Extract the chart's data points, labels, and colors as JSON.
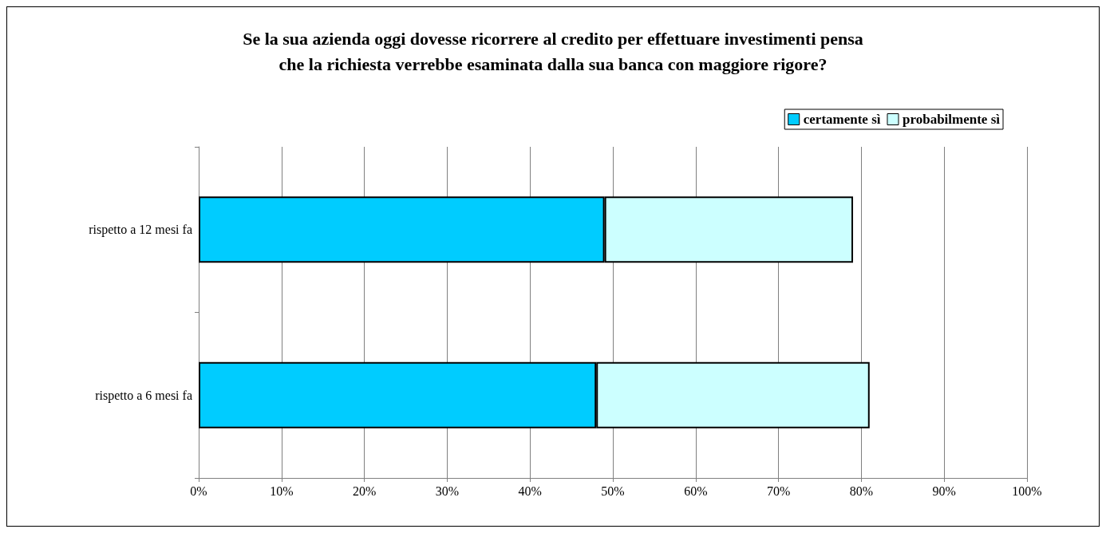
{
  "chart_data": {
    "type": "bar",
    "orientation": "horizontal",
    "stacked": true,
    "title": "Se la sua azienda oggi dovesse ricorrere al credito per effettuare investimenti pensa\nche la richiesta verrebbe esaminata dalla sua banca con maggiore rigore?",
    "categories": [
      "rispetto a 12 mesi fa",
      "rispetto a 6 mesi fa"
    ],
    "series": [
      {
        "name": "certamente sì",
        "color": "#00ccff",
        "values": [
          49,
          48
        ]
      },
      {
        "name": "probabilmente sì",
        "color": "#ccffff",
        "values": [
          30,
          33
        ]
      }
    ],
    "xlim": [
      0,
      100
    ],
    "xticks": [
      {
        "value": 0,
        "label": "0%"
      },
      {
        "value": 10,
        "label": "10%"
      },
      {
        "value": 20,
        "label": "20%"
      },
      {
        "value": 30,
        "label": "30%"
      },
      {
        "value": 40,
        "label": "40%"
      },
      {
        "value": 50,
        "label": "50%"
      },
      {
        "value": 60,
        "label": "60%"
      },
      {
        "value": 70,
        "label": "70%"
      },
      {
        "value": 80,
        "label": "80%"
      },
      {
        "value": 90,
        "label": "90%"
      },
      {
        "value": 100,
        "label": "100%"
      }
    ],
    "grid": "x",
    "legend": "top right"
  }
}
